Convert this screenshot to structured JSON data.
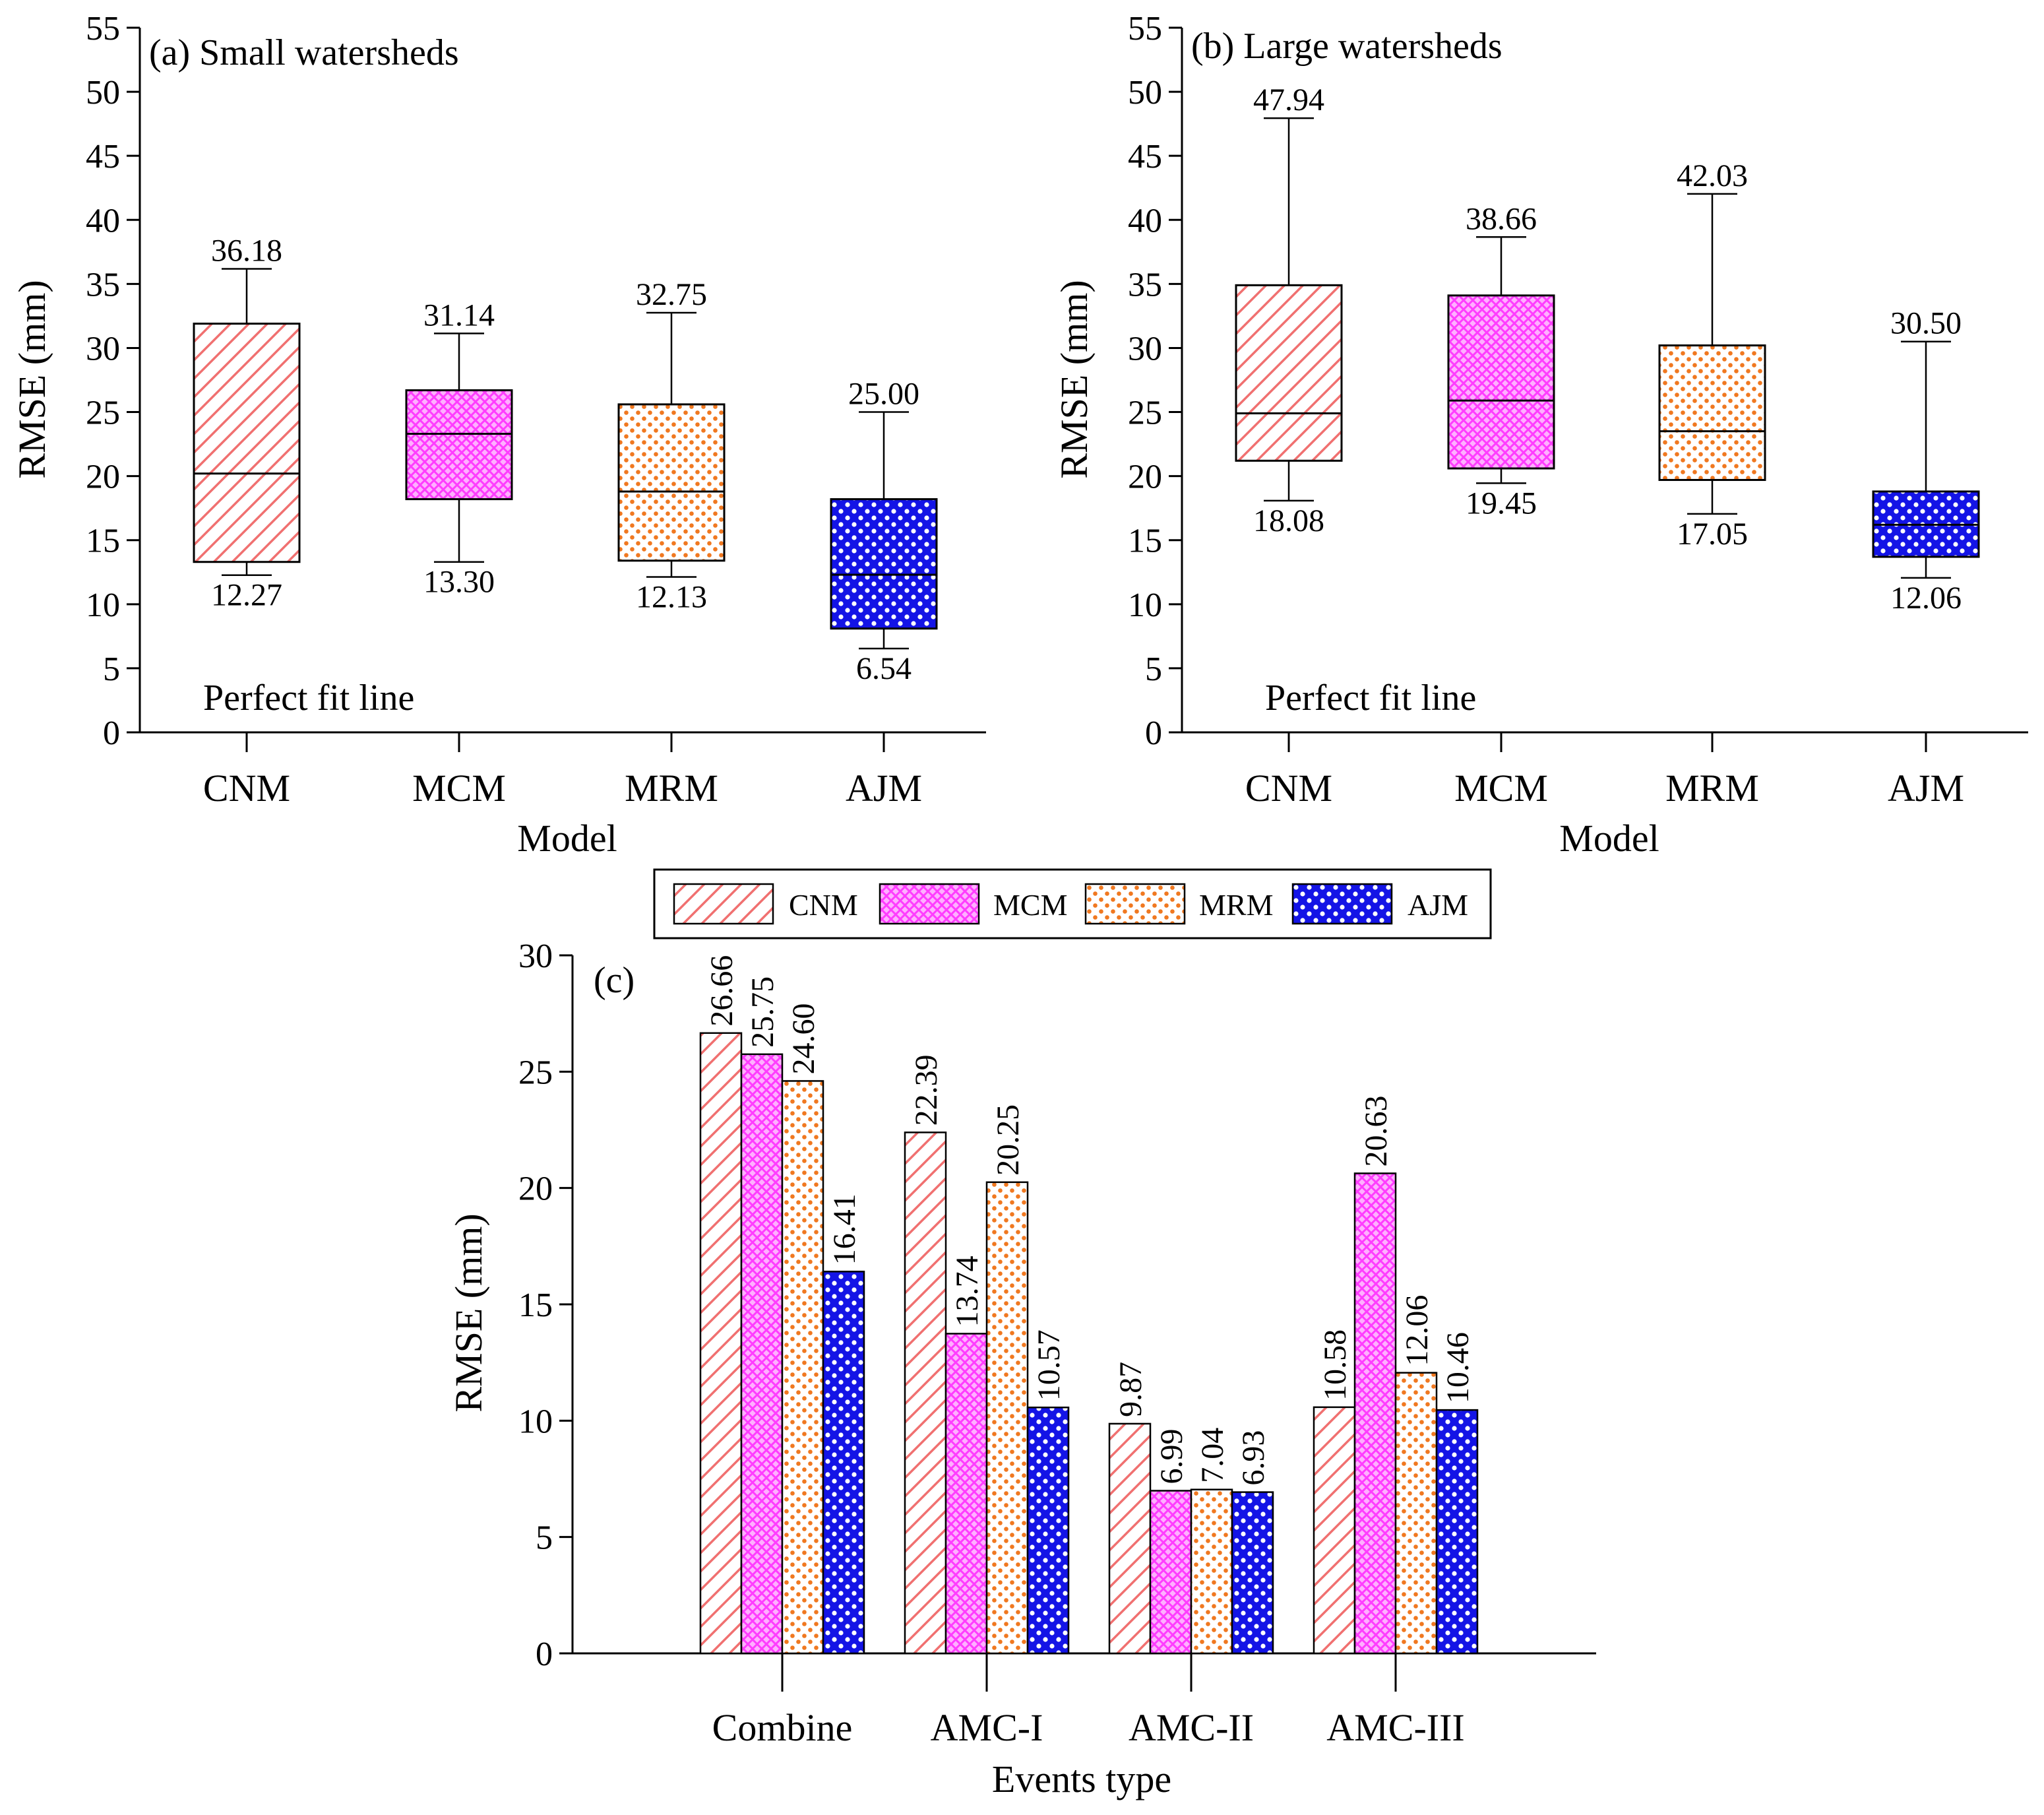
{
  "colors": {
    "CNM": {
      "fg": "#f07070",
      "bg": "#ffffff"
    },
    "MCM": {
      "fg": "#ff3cff",
      "bg": "#ffb0ff"
    },
    "MRM": {
      "fg": "#f07820",
      "bg": "#ffffff"
    },
    "AJM": {
      "fg": "#1414e6",
      "bg": "#ffffff"
    }
  },
  "legend": [
    "CNM",
    "MCM",
    "MRM",
    "AJM"
  ],
  "chart_data": [
    {
      "type": "box",
      "title": "(a) Small watersheds",
      "annotation": "Perfect fit line",
      "xlabel": "Model",
      "ylabel": "RMSE (mm)",
      "ylim": [
        0,
        55
      ],
      "yticks": [
        "0",
        "5",
        "10",
        "15",
        "20",
        "25",
        "30",
        "35",
        "40",
        "45",
        "50",
        "55"
      ],
      "categories": [
        "CNM",
        "MCM",
        "MRM",
        "AJM"
      ],
      "boxes": [
        {
          "min": 12.27,
          "q1": 13.3,
          "median": 20.2,
          "q3": 31.9,
          "max": 36.18,
          "min_label": "12.27",
          "max_label": "36.18"
        },
        {
          "min": 13.3,
          "q1": 18.2,
          "median": 23.3,
          "q3": 26.7,
          "max": 31.14,
          "min_label": "13.30",
          "max_label": "31.14"
        },
        {
          "min": 12.13,
          "q1": 13.4,
          "median": 18.8,
          "q3": 25.6,
          "max": 32.75,
          "min_label": "12.13",
          "max_label": "32.75"
        },
        {
          "min": 6.54,
          "q1": 8.1,
          "median": 12.3,
          "q3": 18.2,
          "max": 25.0,
          "min_label": "6.54",
          "max_label": "25.00"
        }
      ]
    },
    {
      "type": "box",
      "title": "(b) Large watersheds",
      "annotation": "Perfect fit line",
      "xlabel": "Model",
      "ylabel": "RMSE (mm)",
      "ylim": [
        0,
        55
      ],
      "yticks": [
        "0",
        "5",
        "10",
        "15",
        "20",
        "25",
        "30",
        "35",
        "40",
        "45",
        "50",
        "55"
      ],
      "categories": [
        "CNM",
        "MCM",
        "MRM",
        "AJM"
      ],
      "boxes": [
        {
          "min": 18.08,
          "q1": 21.2,
          "median": 24.9,
          "q3": 34.9,
          "max": 47.94,
          "min_label": "18.08",
          "max_label": "47.94"
        },
        {
          "min": 19.45,
          "q1": 20.6,
          "median": 25.9,
          "q3": 34.1,
          "max": 38.66,
          "min_label": "19.45",
          "max_label": "38.66"
        },
        {
          "min": 17.05,
          "q1": 19.7,
          "median": 23.5,
          "q3": 30.2,
          "max": 42.03,
          "min_label": "17.05",
          "max_label": "42.03"
        },
        {
          "min": 12.06,
          "q1": 13.7,
          "median": 16.2,
          "q3": 18.8,
          "max": 30.5,
          "min_label": "12.06",
          "max_label": "30.50"
        }
      ]
    },
    {
      "type": "bar",
      "title": "(c)",
      "xlabel": "Events type",
      "ylabel": "RMSE (mm)",
      "ylim": [
        0,
        30
      ],
      "yticks": [
        "0",
        "5",
        "10",
        "15",
        "20",
        "25",
        "30"
      ],
      "categories": [
        "Combine",
        "AMC-I",
        "AMC-II",
        "AMC-III"
      ],
      "series": [
        {
          "name": "CNM",
          "values": [
            26.66,
            22.39,
            9.87,
            10.58
          ],
          "labels": [
            "26.66",
            "22.39",
            "9.87",
            "10.58"
          ]
        },
        {
          "name": "MCM",
          "values": [
            25.75,
            13.74,
            6.99,
            20.63
          ],
          "labels": [
            "25.75",
            "13.74",
            "6.99",
            "20.63"
          ]
        },
        {
          "name": "MRM",
          "values": [
            24.6,
            20.25,
            7.04,
            12.06
          ],
          "labels": [
            "24.60",
            "20.25",
            "7.04",
            "12.06"
          ]
        },
        {
          "name": "AJM",
          "values": [
            16.41,
            10.57,
            6.93,
            10.46
          ],
          "labels": [
            "16.41",
            "10.57",
            "6.93",
            "10.46"
          ]
        }
      ]
    }
  ]
}
